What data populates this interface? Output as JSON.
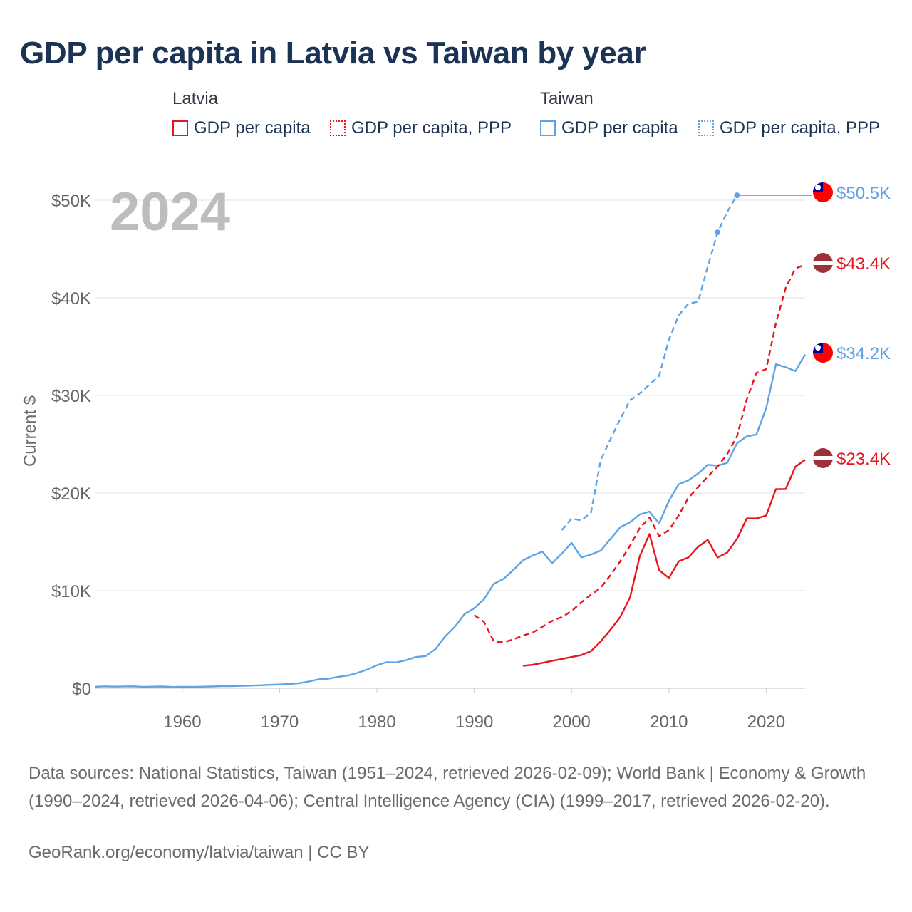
{
  "title": "GDP per capita in Latvia vs Taiwan by year",
  "legend": {
    "groups": [
      {
        "name": "Latvia",
        "items": [
          {
            "label": "GDP per capita",
            "color": "#e8141e",
            "style": "solid"
          },
          {
            "label": "GDP per capita, PPP",
            "color": "#e8141e",
            "style": "dotted"
          }
        ]
      },
      {
        "name": "Taiwan",
        "items": [
          {
            "label": "GDP per capita",
            "color": "#5da3e6",
            "style": "solid"
          },
          {
            "label": "GDP per capita, PPP",
            "color": "#5da3e6",
            "style": "dotted"
          }
        ]
      }
    ]
  },
  "footer": {
    "sources": "Data sources: National Statistics, Taiwan (1951–2024, retrieved 2026-02-09); World Bank | Economy & Growth (1990–2024, retrieved 2026-04-06); Central Intelligence Agency (CIA) (1999–2017, retrieved 2026-02-20).",
    "credit": "GeoRank.org/economy/latvia/taiwan | CC BY"
  },
  "chart_data": {
    "type": "line",
    "title": "GDP per capita in Latvia vs Taiwan by year",
    "current_year_label": "2024",
    "ylabel": "Current $",
    "xlabel": "",
    "xlim": [
      1951,
      2024
    ],
    "ylim": [
      0,
      52000
    ],
    "x_ticks": [
      1960,
      1970,
      1980,
      1990,
      2000,
      2010,
      2020
    ],
    "y_ticks": [
      {
        "value": 0,
        "label": "$0"
      },
      {
        "value": 10000,
        "label": "$10K"
      },
      {
        "value": 20000,
        "label": "$20K"
      },
      {
        "value": 30000,
        "label": "$30K"
      },
      {
        "value": 40000,
        "label": "$40K"
      },
      {
        "value": 50000,
        "label": "$50K"
      }
    ],
    "grid": true,
    "series": [
      {
        "name": "Taiwan GDP per capita",
        "country": "Taiwan",
        "color": "#5da3e6",
        "dash": "solid",
        "end_label": "$34.2K",
        "points": [
          [
            1951,
            150
          ],
          [
            1952,
            200
          ],
          [
            1953,
            170
          ],
          [
            1954,
            190
          ],
          [
            1955,
            200
          ],
          [
            1956,
            140
          ],
          [
            1957,
            170
          ],
          [
            1958,
            180
          ],
          [
            1959,
            130
          ],
          [
            1960,
            150
          ],
          [
            1961,
            140
          ],
          [
            1962,
            160
          ],
          [
            1963,
            180
          ],
          [
            1964,
            210
          ],
          [
            1965,
            220
          ],
          [
            1966,
            240
          ],
          [
            1967,
            270
          ],
          [
            1968,
            310
          ],
          [
            1969,
            350
          ],
          [
            1970,
            390
          ],
          [
            1971,
            440
          ],
          [
            1972,
            520
          ],
          [
            1973,
            690
          ],
          [
            1974,
            920
          ],
          [
            1975,
            980
          ],
          [
            1976,
            1160
          ],
          [
            1977,
            1310
          ],
          [
            1978,
            1580
          ],
          [
            1979,
            1920
          ],
          [
            1980,
            2360
          ],
          [
            1981,
            2670
          ],
          [
            1982,
            2650
          ],
          [
            1983,
            2880
          ],
          [
            1984,
            3200
          ],
          [
            1985,
            3300
          ],
          [
            1986,
            4000
          ],
          [
            1987,
            5300
          ],
          [
            1988,
            6300
          ],
          [
            1989,
            7600
          ],
          [
            1990,
            8200
          ],
          [
            1991,
            9100
          ],
          [
            1992,
            10700
          ],
          [
            1993,
            11200
          ],
          [
            1994,
            12100
          ],
          [
            1995,
            13100
          ],
          [
            1996,
            13600
          ],
          [
            1997,
            14000
          ],
          [
            1998,
            12800
          ],
          [
            1999,
            13800
          ],
          [
            2000,
            14900
          ],
          [
            2001,
            13400
          ],
          [
            2002,
            13700
          ],
          [
            2003,
            14100
          ],
          [
            2004,
            15300
          ],
          [
            2005,
            16500
          ],
          [
            2006,
            17000
          ],
          [
            2007,
            17800
          ],
          [
            2008,
            18100
          ],
          [
            2009,
            16900
          ],
          [
            2010,
            19200
          ],
          [
            2011,
            20900
          ],
          [
            2012,
            21300
          ],
          [
            2013,
            22000
          ],
          [
            2014,
            22900
          ],
          [
            2015,
            22800
          ],
          [
            2016,
            23100
          ],
          [
            2017,
            25100
          ],
          [
            2018,
            25800
          ],
          [
            2019,
            26000
          ],
          [
            2020,
            28700
          ],
          [
            2021,
            33200
          ],
          [
            2022,
            32900
          ],
          [
            2023,
            32500
          ],
          [
            2024,
            34200
          ]
        ]
      },
      {
        "name": "Taiwan GDP per capita, PPP",
        "country": "Taiwan",
        "color": "#5da3e6",
        "dash": "dashed",
        "end_label": "$50.5K",
        "points": [
          [
            1999,
            16200
          ],
          [
            2000,
            17400
          ],
          [
            2001,
            17200
          ],
          [
            2002,
            18000
          ],
          [
            2003,
            23400
          ],
          [
            2004,
            25500
          ],
          [
            2005,
            27600
          ],
          [
            2006,
            29500
          ],
          [
            2007,
            30200
          ],
          [
            2008,
            31100
          ],
          [
            2009,
            32000
          ],
          [
            2010,
            35700
          ],
          [
            2011,
            38200
          ],
          [
            2012,
            39400
          ],
          [
            2013,
            39600
          ],
          [
            2014,
            43200
          ],
          [
            2015,
            46700
          ],
          [
            2016,
            48800
          ],
          [
            2017,
            50500
          ]
        ],
        "markers": [
          [
            2015,
            46700
          ],
          [
            2017,
            50500
          ]
        ],
        "extension_to": 2024
      },
      {
        "name": "Latvia GDP per capita",
        "country": "Latvia",
        "color": "#e8141e",
        "dash": "solid",
        "end_label": "$23.4K",
        "points": [
          [
            1995,
            2300
          ],
          [
            1996,
            2400
          ],
          [
            1997,
            2600
          ],
          [
            1998,
            2800
          ],
          [
            1999,
            3000
          ],
          [
            2000,
            3200
          ],
          [
            2001,
            3400
          ],
          [
            2002,
            3800
          ],
          [
            2003,
            4800
          ],
          [
            2004,
            6000
          ],
          [
            2005,
            7300
          ],
          [
            2006,
            9300
          ],
          [
            2007,
            13500
          ],
          [
            2008,
            15800
          ],
          [
            2009,
            12100
          ],
          [
            2010,
            11300
          ],
          [
            2011,
            13000
          ],
          [
            2012,
            13400
          ],
          [
            2013,
            14500
          ],
          [
            2014,
            15200
          ],
          [
            2015,
            13400
          ],
          [
            2016,
            13900
          ],
          [
            2017,
            15300
          ],
          [
            2018,
            17400
          ],
          [
            2019,
            17400
          ],
          [
            2020,
            17700
          ],
          [
            2021,
            20400
          ],
          [
            2022,
            20400
          ],
          [
            2023,
            22700
          ],
          [
            2024,
            23400
          ]
        ]
      },
      {
        "name": "Latvia GDP per capita, PPP",
        "country": "Latvia",
        "color": "#e8141e",
        "dash": "dashed",
        "end_label": "$43.4K",
        "points": [
          [
            1990,
            7500
          ],
          [
            1991,
            6800
          ],
          [
            1992,
            4800
          ],
          [
            1993,
            4700
          ],
          [
            1994,
            5000
          ],
          [
            1995,
            5400
          ],
          [
            1996,
            5700
          ],
          [
            1997,
            6300
          ],
          [
            1998,
            6900
          ],
          [
            1999,
            7300
          ],
          [
            2000,
            7900
          ],
          [
            2001,
            8800
          ],
          [
            2002,
            9600
          ],
          [
            2003,
            10300
          ],
          [
            2004,
            11600
          ],
          [
            2005,
            13000
          ],
          [
            2006,
            14600
          ],
          [
            2007,
            16400
          ],
          [
            2008,
            17500
          ],
          [
            2009,
            15600
          ],
          [
            2010,
            16200
          ],
          [
            2011,
            17700
          ],
          [
            2012,
            19500
          ],
          [
            2013,
            20600
          ],
          [
            2014,
            21700
          ],
          [
            2015,
            22700
          ],
          [
            2016,
            24000
          ],
          [
            2017,
            25800
          ],
          [
            2018,
            29600
          ],
          [
            2019,
            32300
          ],
          [
            2020,
            32700
          ],
          [
            2021,
            37400
          ],
          [
            2022,
            41000
          ],
          [
            2023,
            43000
          ],
          [
            2024,
            43400
          ]
        ]
      }
    ]
  }
}
